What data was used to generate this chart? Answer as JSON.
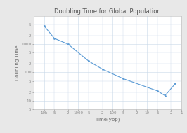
{
  "title": "Doubling Time for Global Population",
  "xlabel": "Time(ybp)",
  "ylabel": "Doubling Time",
  "x_data": [
    10000,
    5000,
    2000,
    500,
    200,
    50,
    5,
    3,
    1.5
  ],
  "y_data": [
    4500,
    1600,
    1000,
    250,
    130,
    60,
    22,
    15,
    40
  ],
  "line_color": "#5b9bd5",
  "marker": "o",
  "marker_size": 2.0,
  "line_width": 0.8,
  "bg_color": "#e8e8e8",
  "plot_bg_color": "#ffffff",
  "grid_color": "#c8d8e8",
  "title_fontsize": 6,
  "label_fontsize": 5,
  "tick_fontsize": 4,
  "xlim_min": 1,
  "xlim_max": 20000,
  "ylim_min": 10,
  "ylim_max": 10000
}
